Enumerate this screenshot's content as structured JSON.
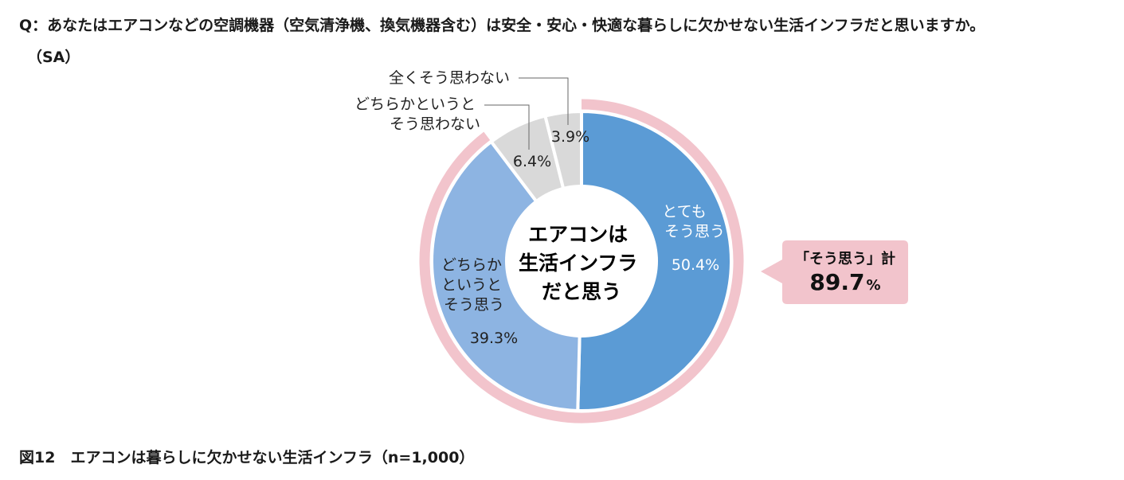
{
  "header": {
    "question_line1": "Q：あなたはエアコンなどの空調機器（空気清浄機、換気機器含む）は安全・安心・快適な暮らしに欠かせない生活インフラだと思いますか。",
    "question_line2": "（SA）"
  },
  "caption": "図12　エアコンは暮らしに欠かせない生活インフラ（n=1,000）",
  "colors": {
    "very_much": "#5b9bd5",
    "somewhat": "#8db4e2",
    "negative": "#d9d9d9",
    "outer_ring": "#f2c4cc",
    "callout_bg": "#f2c4cc"
  },
  "chart_data": {
    "type": "pie",
    "variant": "donut",
    "center_label": [
      "エアコンは",
      "生活インフラ",
      "だと思う"
    ],
    "slices": [
      {
        "label": "とてもそう思う",
        "label_lines": [
          "とても",
          "そう思う"
        ],
        "value": 50.4,
        "display": "50.4%",
        "color": "#5b9bd5"
      },
      {
        "label": "どちらかというとそう思う",
        "label_lines": [
          "どちらか",
          "というと",
          "そう思う"
        ],
        "value": 39.3,
        "display": "39.3%",
        "color": "#8db4e2"
      },
      {
        "label": "どちらかというとそう思わない",
        "label_lines": [
          "どちらかというと",
          "そう思わない"
        ],
        "value": 6.4,
        "display": "6.4%",
        "color": "#d9d9d9"
      },
      {
        "label": "全くそう思わない",
        "label_lines": [
          "全くそう思わない"
        ],
        "value": 3.9,
        "display": "3.9%",
        "color": "#d9d9d9"
      }
    ],
    "outer_ring": {
      "label": "「そう思う」計",
      "value": 89.7,
      "value_text": "89.7",
      "unit": "%"
    }
  }
}
